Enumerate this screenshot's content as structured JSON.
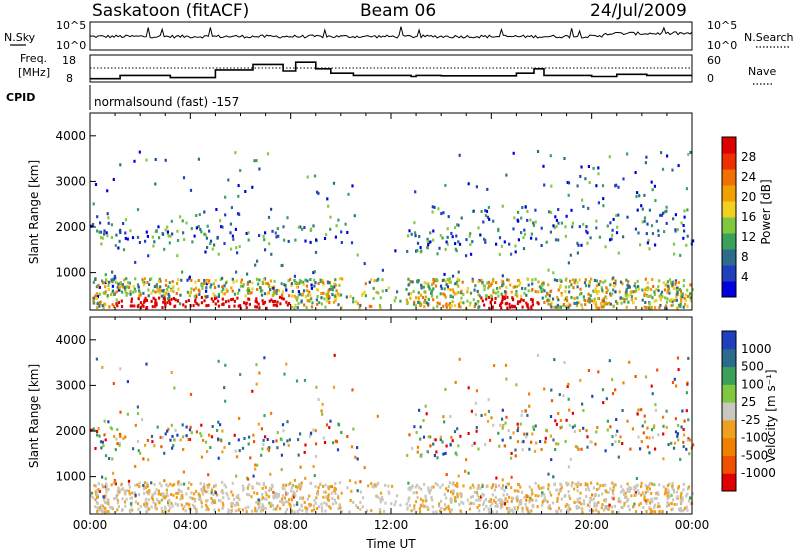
{
  "header": {
    "station": "Saskatoon (fitACF)",
    "beam": "Beam 06",
    "date": "24/Jul/2009"
  },
  "noise_panel": {
    "left_label": "N.Sky",
    "right_label": "N.Search",
    "ticks_left": [
      "10^5",
      "10^0"
    ],
    "ticks_right": [
      "10^5",
      "10^0"
    ]
  },
  "freq_panel": {
    "left_label_1": "Freq.",
    "left_label_2": "[MHz]",
    "right_label": "Nave",
    "ticks_left": [
      "18",
      "8"
    ],
    "ticks_right": [
      "60",
      "0"
    ]
  },
  "cpid": {
    "label": "CPID",
    "text": "normalsound (fast) -157"
  },
  "colors": {
    "power_scale": [
      "#0000dd",
      "#1f3fbf",
      "#2d6b8a",
      "#3aa05a",
      "#80c840",
      "#f0d020",
      "#f0a000",
      "#f07000",
      "#ee3000",
      "#dd0000"
    ],
    "velocity_scale": [
      "#e00000",
      "#f05000",
      "#f08000",
      "#f0a020",
      "#c8c8c0",
      "#80c840",
      "#3aa05a",
      "#2d6b8a",
      "#1f3fbf"
    ]
  },
  "chart_data": [
    {
      "type": "heatmap",
      "quantity": "Power",
      "ylabel": "Slant Range [km]",
      "yticks": [
        "1000",
        "2000",
        "3000",
        "4000"
      ],
      "xticks": [
        "00:00",
        "04:00",
        "08:00",
        "12:00",
        "16:00",
        "20:00",
        "00:00"
      ],
      "ylim": [
        180,
        4500
      ],
      "xlim": [
        0,
        24
      ],
      "colorbar_label": "Power [dB]",
      "colorbar_ticks": [
        "4",
        "8",
        "12",
        "16",
        "20",
        "24",
        "28"
      ],
      "colorbar_range": [
        0,
        32
      ]
    },
    {
      "type": "heatmap",
      "quantity": "Velocity",
      "ylabel": "Slant Range [km]",
      "yticks": [
        "1000",
        "2000",
        "3000",
        "4000"
      ],
      "xticks": [
        "00:00",
        "04:00",
        "08:00",
        "12:00",
        "16:00",
        "20:00",
        "00:00"
      ],
      "xlabel": "Time UT",
      "ylim": [
        180,
        4500
      ],
      "xlim": [
        0,
        24
      ],
      "colorbar_label": "Velocity [m s⁻¹]",
      "colorbar_ticks": [
        "-1000",
        "-500",
        "-100",
        "-25",
        "25",
        "100",
        "500",
        "1000"
      ]
    }
  ]
}
